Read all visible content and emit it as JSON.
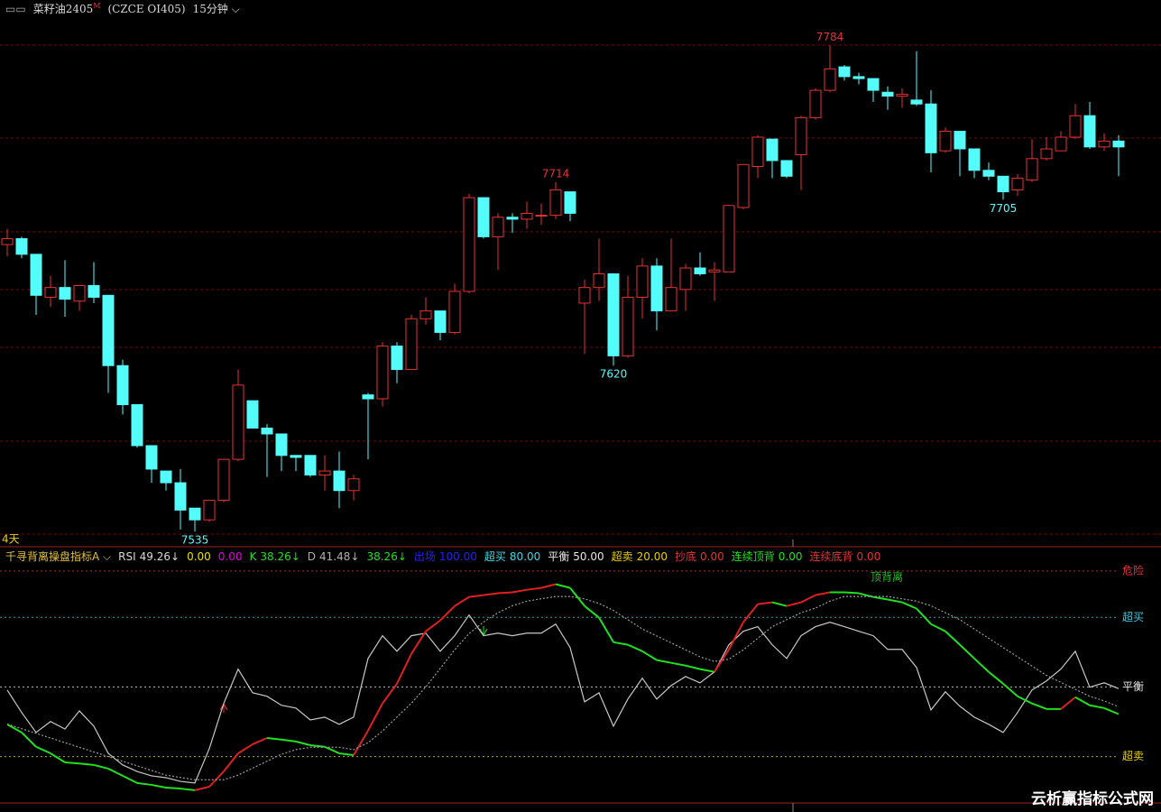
{
  "header": {
    "symbol": "菜籽油2405",
    "flag": "M",
    "code": "(CZCE OI405)",
    "period": "15分钟"
  },
  "range_label": "4天",
  "watermark": "云析赢指标公式网",
  "chart_data": [
    {
      "type": "candlestick",
      "up_color": "#e83232",
      "down_color": "#54fcfc",
      "ylim": [
        7530,
        7798
      ],
      "open": [
        7682,
        7685,
        7677,
        7655,
        7660,
        7653,
        7661,
        7656,
        7620,
        7600,
        7579,
        7566,
        7560,
        7547,
        7541,
        7551,
        7572,
        7602,
        7588,
        7585,
        7574,
        7574,
        7564,
        7566,
        7556,
        7605,
        7603,
        7630,
        7618,
        7644,
        7648,
        7637,
        7658,
        7706,
        7686,
        7696,
        7695,
        7697,
        7697,
        7709,
        7652,
        7660,
        7667,
        7625,
        7655,
        7671,
        7648,
        7659,
        7670,
        7668,
        7668,
        7701,
        7722,
        7736,
        7725,
        7728,
        7747,
        7761,
        7773,
        7768,
        7767,
        7760,
        7758,
        7756,
        7754,
        7730,
        7740,
        7731,
        7720,
        7717,
        7710,
        7715,
        7726,
        7730,
        7737,
        7748,
        7732,
        7735
      ],
      "close": [
        7685,
        7677,
        7656,
        7660,
        7654,
        7661,
        7655,
        7620,
        7600,
        7579,
        7567,
        7560,
        7546,
        7541,
        7551,
        7572,
        7610,
        7588,
        7585,
        7574,
        7573,
        7564,
        7566,
        7556,
        7562,
        7603,
        7630,
        7618,
        7644,
        7648,
        7637,
        7658,
        7706,
        7686,
        7696,
        7695,
        7698,
        7697,
        7710,
        7698,
        7660,
        7667,
        7625,
        7655,
        7671,
        7648,
        7660,
        7670,
        7667,
        7669,
        7702,
        7723,
        7737,
        7725,
        7717,
        7747,
        7761,
        7772,
        7768,
        7767,
        7761,
        7758,
        7759,
        7754,
        7729,
        7740,
        7731,
        7720,
        7717,
        7709,
        7716,
        7726,
        7731,
        7737,
        7748,
        7732,
        7735,
        7732
      ],
      "high": [
        7690,
        7686,
        7677,
        7666,
        7674,
        7661,
        7673,
        7656,
        7623,
        7600,
        7579,
        7566,
        7567,
        7547,
        7551,
        7572,
        7618,
        7602,
        7590,
        7585,
        7574,
        7574,
        7574,
        7576,
        7564,
        7606,
        7632,
        7632,
        7646,
        7655,
        7648,
        7662,
        7708,
        7706,
        7698,
        7698,
        7704,
        7703,
        7714,
        7709,
        7664,
        7685,
        7667,
        7666,
        7675,
        7675,
        7685,
        7672,
        7678,
        7673,
        7702,
        7723,
        7738,
        7736,
        7725,
        7748,
        7762,
        7784,
        7774,
        7770,
        7767,
        7763,
        7762,
        7781,
        7761,
        7742,
        7740,
        7731,
        7724,
        7717,
        7718,
        7736,
        7737,
        7740,
        7754,
        7755,
        7739,
        7738
      ],
      "low": [
        7676,
        7675,
        7646,
        7650,
        7645,
        7648,
        7652,
        7606,
        7595,
        7578,
        7560,
        7556,
        7536,
        7535,
        7540,
        7550,
        7571,
        7588,
        7563,
        7566,
        7566,
        7563,
        7556,
        7547,
        7551,
        7572,
        7599,
        7611,
        7618,
        7641,
        7633,
        7636,
        7657,
        7685,
        7669,
        7688,
        7690,
        7692,
        7695,
        7694,
        7626,
        7653,
        7620,
        7624,
        7644,
        7638,
        7648,
        7648,
        7666,
        7653,
        7668,
        7700,
        7716,
        7716,
        7716,
        7710,
        7746,
        7760,
        7766,
        7764,
        7755,
        7751,
        7752,
        7753,
        7719,
        7729,
        7717,
        7716,
        7715,
        7705,
        7707,
        7714,
        7725,
        7730,
        7736,
        7731,
        7730,
        7717
      ],
      "annotations": [
        "7784",
        "7714",
        "7620",
        "7705",
        "7535"
      ]
    },
    {
      "type": "line",
      "title": "千寻背离操盘指标A",
      "ylim": [
        0,
        105
      ],
      "legend": [
        {
          "name": "RSI",
          "text": "49.26↓",
          "color": "#d8d8d8"
        },
        {
          "text": "0.00",
          "color": "#e8e000"
        },
        {
          "text": "0.00",
          "color": "#e000e0"
        },
        {
          "name": "K",
          "text": "38.26↓",
          "color": "#20e020"
        },
        {
          "name": "D",
          "text": "41.48↓",
          "color": "#b0b0b0"
        },
        {
          "text": "38.26↓",
          "color": "#20e020"
        },
        {
          "name": "出场",
          "text": "100.00",
          "color": "#2020ff"
        },
        {
          "name": "超买",
          "text": "80.00",
          "color": "#40d8e8"
        },
        {
          "name": "平衡",
          "text": "50.00",
          "color": "#e8e8e8"
        },
        {
          "name": "超卖",
          "text": "20.00",
          "color": "#e8d000"
        },
        {
          "name": "抄底",
          "text": "0.00",
          "color": "#e83232"
        },
        {
          "name": "连续顶背",
          "text": "0.00",
          "color": "#20e020"
        },
        {
          "name": "连续底背",
          "text": "0.00",
          "color": "#e83232"
        }
      ],
      "levels": [
        {
          "label": "危险",
          "value": 100,
          "color": "#e83232"
        },
        {
          "label": "超买",
          "value": 80,
          "color": "#40c8e0"
        },
        {
          "label": "平衡",
          "value": 50,
          "color": "#e8e8e8"
        },
        {
          "label": "超卖",
          "value": 20,
          "color": "#e8d000"
        }
      ],
      "annotation": {
        "text": "顶背离",
        "color": "#20c020"
      },
      "series": [
        {
          "color": "#c8c8c8",
          "values": [
            48.7,
            39.0,
            30.4,
            35.1,
            31.9,
            39.7,
            33.1,
            21.4,
            16.4,
            13.6,
            11.7,
            10.9,
            9.3,
            8.6,
            23.4,
            42.9,
            57.7,
            47.5,
            46.0,
            42.1,
            40.9,
            35.8,
            37.0,
            33.9,
            37.0,
            62.3,
            72.1,
            65.4,
            72.1,
            73.2,
            65.4,
            72.1,
            81.0,
            72.1,
            73.2,
            72.1,
            73.2,
            73.2,
            77.1,
            67.0,
            43.6,
            47.5,
            33.1,
            44.8,
            53.8,
            44.8,
            50.6,
            54.5,
            51.8,
            56.5,
            68.2,
            74.0,
            76.0,
            68.2,
            62.3,
            72.1,
            76.0,
            77.9,
            76.0,
            74.0,
            72.1,
            66.2,
            66.2,
            58.4,
            40.1,
            47.9,
            41.7,
            37.0,
            33.9,
            30.4,
            39.0,
            48.7,
            52.6,
            57.7,
            65.4,
            49.9,
            51.8,
            49.3
          ]
        },
        {
          "up_color": "#e02020",
          "down_color": "#20e020",
          "values": [
            33.9,
            30.4,
            24.2,
            21.4,
            17.5,
            17.0,
            16.4,
            14.8,
            11.7,
            8.6,
            7.8,
            6.6,
            6.2,
            5.5,
            7.0,
            13.6,
            21.4,
            25.3,
            28.0,
            27.3,
            26.5,
            24.9,
            24.2,
            21.4,
            20.6,
            31.2,
            42.9,
            51.4,
            64.3,
            74.0,
            78.7,
            84.9,
            88.8,
            89.6,
            90.4,
            90.8,
            91.9,
            92.7,
            94.3,
            92.7,
            84.9,
            79.9,
            69.3,
            68.2,
            65.4,
            61.6,
            60.4,
            59.2,
            57.7,
            56.5,
            66.2,
            77.9,
            85.7,
            86.5,
            84.9,
            86.5,
            89.6,
            90.8,
            90.8,
            90.4,
            88.8,
            87.7,
            86.5,
            83.8,
            77.1,
            74.0,
            68.2,
            62.3,
            56.5,
            51.4,
            46.0,
            42.9,
            40.5,
            40.5,
            45.6,
            42.1,
            40.9,
            38.3
          ]
        },
        {
          "color": "#9a9a9a",
          "dashed": true,
          "values": [
            34,
            32,
            30,
            28,
            26,
            24,
            22,
            20,
            18,
            16,
            14,
            12,
            11,
            10,
            10,
            10,
            12,
            15,
            18,
            21,
            23,
            24,
            24,
            24,
            23,
            26,
            31,
            37,
            43,
            50,
            58,
            66,
            73,
            78,
            82,
            85,
            87,
            88,
            89,
            89,
            88,
            86,
            83,
            79,
            75,
            72,
            69,
            66,
            63,
            61,
            62,
            66,
            71,
            76,
            79,
            82,
            84,
            87,
            89,
            89,
            89,
            89,
            88,
            87,
            85,
            82,
            79,
            75,
            71,
            67,
            63,
            59,
            55,
            52,
            49,
            46,
            44,
            41.48
          ]
        }
      ]
    }
  ]
}
